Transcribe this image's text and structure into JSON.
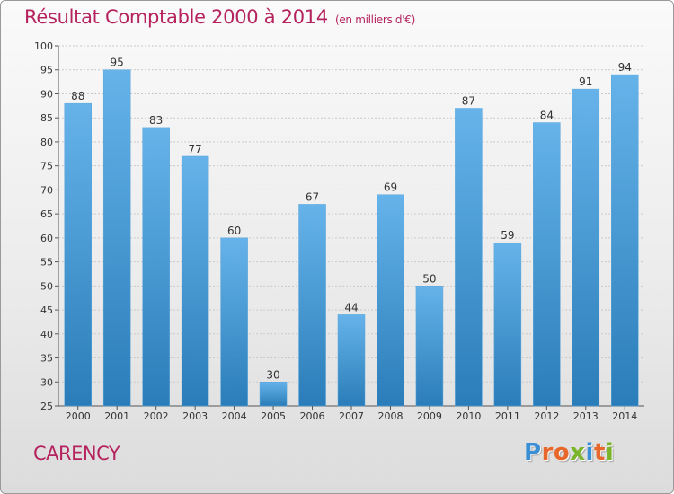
{
  "header": {
    "title": "Résultat Comptable 2000 à 2014",
    "subtitle": "(en milliers d'€)"
  },
  "footer": {
    "town": "CARENCY",
    "logo": "Proxiti"
  },
  "colors": {
    "accent": "#b5235e",
    "bar_light": "#66b3ea",
    "bar_dark": "#2a7db9",
    "logo_letters": [
      "#3b8fd4",
      "#e8672a",
      "#e8672a",
      "#7ab529",
      "#3b8fd4",
      "#e8672a",
      "#7ab529"
    ]
  },
  "chart_data": {
    "type": "bar",
    "title": "Résultat Comptable 2000 à 2014",
    "subtitle": "(en milliers d'€)",
    "xlabel": "",
    "ylabel": "",
    "categories": [
      "2000",
      "2001",
      "2002",
      "2003",
      "2004",
      "2005",
      "2006",
      "2007",
      "2008",
      "2009",
      "2010",
      "2011",
      "2012",
      "2013",
      "2014"
    ],
    "values": [
      88,
      95,
      83,
      77,
      60,
      30,
      67,
      44,
      69,
      50,
      87,
      59,
      84,
      91,
      94
    ],
    "ylim": [
      25,
      100
    ],
    "yticks": [
      25,
      30,
      35,
      40,
      45,
      50,
      55,
      60,
      65,
      70,
      75,
      80,
      85,
      90,
      95,
      100
    ],
    "grid": true
  }
}
